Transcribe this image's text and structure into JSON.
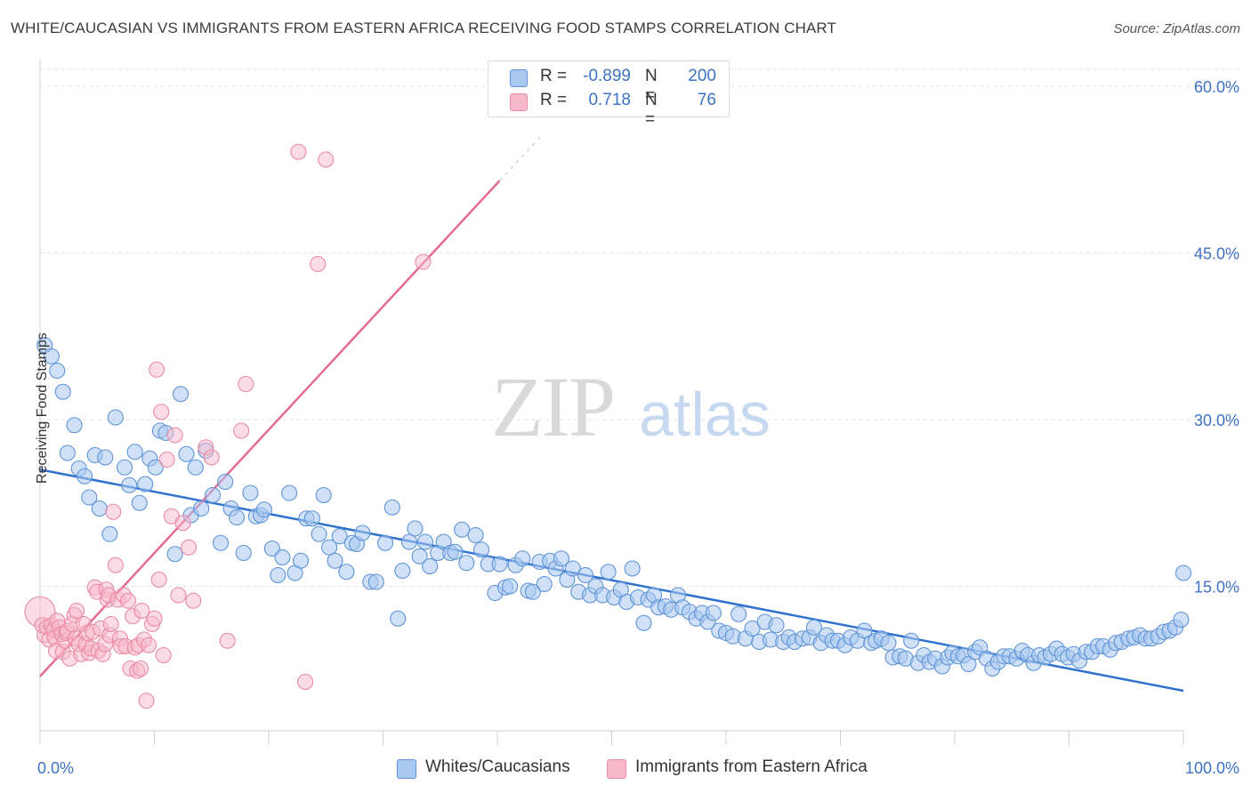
{
  "header": {
    "title": "WHITE/CAUCASIAN VS IMMIGRANTS FROM EASTERN AFRICA RECEIVING FOOD STAMPS CORRELATION CHART",
    "source": "Source: ZipAtlas.com"
  },
  "watermark": {
    "zip": "ZIP",
    "atlas": "atlas"
  },
  "legend_top": {
    "rows": [
      {
        "r_label": "R =",
        "r_value": "-0.899",
        "n_label": "N =",
        "n_value": "200"
      },
      {
        "r_label": "R =",
        "r_value": "0.718",
        "n_label": "N =",
        "n_value": "76"
      }
    ]
  },
  "colors": {
    "blue_fill": "#a9c8f0",
    "blue_stroke": "#5d93d6",
    "blue_line": "#2f73cf",
    "pink_fill": "#f7b8cb",
    "pink_stroke": "#e98aa6",
    "pink_line": "#e46c93",
    "axis_text": "#3d72c4"
  },
  "chart_data": {
    "type": "scatter",
    "ylabel": "Receiving Food Stamps",
    "xlim": [
      0,
      100
    ],
    "ylim": [
      0,
      63
    ],
    "x_tick_labels": [
      "0.0%",
      "100.0%"
    ],
    "y_ticks": [
      15,
      30,
      45,
      60
    ],
    "y_tick_labels": [
      "15.0%",
      "30.0%",
      "45.0%",
      "60.0%"
    ],
    "grid": true,
    "legend_placement": "top-center",
    "series": [
      {
        "name": "Whites/Caucasians",
        "color": "#a9c8f0",
        "trend": {
          "x": [
            0,
            100
          ],
          "y": [
            25.5,
            5.6
          ],
          "style": "solid"
        },
        "points": [
          [
            0.4,
            36.7
          ],
          [
            1,
            35.7
          ],
          [
            1.5,
            34.4
          ],
          [
            2,
            32.5
          ],
          [
            2.4,
            27
          ],
          [
            3,
            29.5
          ],
          [
            3.4,
            25.6
          ],
          [
            3.9,
            24.9
          ],
          [
            4.3,
            23
          ],
          [
            4.8,
            26.8
          ],
          [
            5.2,
            22
          ],
          [
            5.7,
            26.6
          ],
          [
            6.1,
            19.7
          ],
          [
            6.6,
            30.2
          ],
          [
            7.4,
            25.7
          ],
          [
            7.8,
            24.1
          ],
          [
            8.3,
            27.1
          ],
          [
            8.7,
            22.5
          ],
          [
            9.2,
            24.2
          ],
          [
            9.6,
            26.5
          ],
          [
            10.1,
            25.7
          ],
          [
            10.5,
            29
          ],
          [
            11,
            28.8
          ],
          [
            11.8,
            17.9
          ],
          [
            12.3,
            32.3
          ],
          [
            12.8,
            26.9
          ],
          [
            13.2,
            21.4
          ],
          [
            13.6,
            25.7
          ],
          [
            14.1,
            22
          ],
          [
            14.5,
            27.2
          ],
          [
            15.1,
            23.2
          ],
          [
            15.8,
            18.9
          ],
          [
            16.2,
            24.4
          ],
          [
            16.7,
            22
          ],
          [
            17.2,
            21.2
          ],
          [
            17.8,
            18
          ],
          [
            18.4,
            23.4
          ],
          [
            18.9,
            21.3
          ],
          [
            19.3,
            21.4
          ],
          [
            19.6,
            21.9
          ],
          [
            20.3,
            18.4
          ],
          [
            20.8,
            16
          ],
          [
            21.2,
            17.6
          ],
          [
            21.8,
            23.4
          ],
          [
            22.3,
            16.2
          ],
          [
            22.8,
            17.3
          ],
          [
            23.3,
            21.1
          ],
          [
            23.8,
            21.1
          ],
          [
            24.4,
            19.7
          ],
          [
            24.8,
            23.2
          ],
          [
            25.3,
            18.5
          ],
          [
            25.8,
            17.3
          ],
          [
            26.2,
            19.5
          ],
          [
            26.8,
            16.3
          ],
          [
            27.3,
            18.9
          ],
          [
            27.7,
            18.8
          ],
          [
            28.2,
            19.8
          ],
          [
            28.9,
            15.4
          ],
          [
            29.4,
            15.4
          ],
          [
            30.2,
            18.9
          ],
          [
            30.8,
            22.1
          ],
          [
            31.3,
            12.1
          ],
          [
            31.7,
            16.4
          ],
          [
            32.3,
            19
          ],
          [
            32.8,
            20.2
          ],
          [
            33.2,
            17.7
          ],
          [
            33.7,
            19
          ],
          [
            34.1,
            16.8
          ],
          [
            34.8,
            18
          ],
          [
            35.3,
            19
          ],
          [
            35.9,
            18
          ],
          [
            36.3,
            18.1
          ],
          [
            36.9,
            20.1
          ],
          [
            37.3,
            17.1
          ],
          [
            38.1,
            19.6
          ],
          [
            38.6,
            18.3
          ],
          [
            39.2,
            17
          ],
          [
            39.8,
            14.4
          ],
          [
            40.2,
            17
          ],
          [
            40.7,
            14.9
          ],
          [
            41.1,
            15
          ],
          [
            41.6,
            16.9
          ],
          [
            42.2,
            17.5
          ],
          [
            42.7,
            14.6
          ],
          [
            43.1,
            14.5
          ],
          [
            43.7,
            17.2
          ],
          [
            44.1,
            15.2
          ],
          [
            44.6,
            17.3
          ],
          [
            45.1,
            16.6
          ],
          [
            45.6,
            17.5
          ],
          [
            46.1,
            15.6
          ],
          [
            46.6,
            16.6
          ],
          [
            47.1,
            14.5
          ],
          [
            47.7,
            16
          ],
          [
            48.1,
            14.2
          ],
          [
            48.6,
            15
          ],
          [
            49.2,
            14.2
          ],
          [
            49.7,
            16.3
          ],
          [
            50.2,
            14
          ],
          [
            50.8,
            14.7
          ],
          [
            51.3,
            13.6
          ],
          [
            51.8,
            16.6
          ],
          [
            52.3,
            14
          ],
          [
            52.8,
            11.7
          ],
          [
            53.2,
            13.8
          ],
          [
            53.7,
            14.2
          ],
          [
            54.1,
            13.1
          ],
          [
            54.7,
            13.2
          ],
          [
            55.2,
            12.9
          ],
          [
            55.8,
            14.2
          ],
          [
            56.2,
            13.1
          ],
          [
            56.8,
            12.7
          ],
          [
            57.4,
            12.1
          ],
          [
            57.9,
            12.6
          ],
          [
            58.4,
            11.8
          ],
          [
            58.9,
            12.6
          ],
          [
            59.4,
            11
          ],
          [
            60,
            10.8
          ],
          [
            60.6,
            10.5
          ],
          [
            61.1,
            12.5
          ],
          [
            61.7,
            10.3
          ],
          [
            62.3,
            11.2
          ],
          [
            62.9,
            10
          ],
          [
            63.4,
            11.8
          ],
          [
            63.9,
            10.2
          ],
          [
            64.4,
            11.5
          ],
          [
            65,
            10
          ],
          [
            65.5,
            10.4
          ],
          [
            66,
            10
          ],
          [
            66.7,
            10.3
          ],
          [
            67.3,
            10.4
          ],
          [
            67.7,
            11.3
          ],
          [
            68.3,
            9.9
          ],
          [
            68.8,
            10.6
          ],
          [
            69.3,
            10.1
          ],
          [
            69.8,
            10.1
          ],
          [
            70.4,
            9.7
          ],
          [
            70.9,
            10.4
          ],
          [
            71.5,
            10.1
          ],
          [
            72.1,
            11
          ],
          [
            72.7,
            9.9
          ],
          [
            73.1,
            10.1
          ],
          [
            73.6,
            10.3
          ],
          [
            74.2,
            9.9
          ],
          [
            74.6,
            8.6
          ],
          [
            75.2,
            8.7
          ],
          [
            75.7,
            8.5
          ],
          [
            76.2,
            10.1
          ],
          [
            76.8,
            8.1
          ],
          [
            77.3,
            8.8
          ],
          [
            77.8,
            8.2
          ],
          [
            78.3,
            8.5
          ],
          [
            78.9,
            7.8
          ],
          [
            79.4,
            8.6
          ],
          [
            79.8,
            9
          ],
          [
            80.3,
            8.7
          ],
          [
            80.8,
            8.8
          ],
          [
            81.2,
            8
          ],
          [
            81.8,
            9.1
          ],
          [
            82.2,
            9.5
          ],
          [
            82.8,
            8.5
          ],
          [
            83.3,
            7.6
          ],
          [
            83.8,
            8.2
          ],
          [
            84.3,
            8.7
          ],
          [
            84.8,
            8.7
          ],
          [
            85.4,
            8.5
          ],
          [
            85.9,
            9.2
          ],
          [
            86.4,
            8.8
          ],
          [
            86.9,
            8.1
          ],
          [
            87.4,
            8.8
          ],
          [
            87.9,
            8.6
          ],
          [
            88.4,
            8.9
          ],
          [
            88.9,
            9.4
          ],
          [
            89.4,
            8.9
          ],
          [
            89.9,
            8.6
          ],
          [
            90.4,
            8.9
          ],
          [
            90.9,
            8.3
          ],
          [
            91.5,
            9.1
          ],
          [
            92,
            9.1
          ],
          [
            92.5,
            9.6
          ],
          [
            93,
            9.6
          ],
          [
            93.6,
            9.3
          ],
          [
            94.1,
            9.9
          ],
          [
            94.6,
            10
          ],
          [
            95.2,
            10.3
          ],
          [
            95.7,
            10.4
          ],
          [
            96.2,
            10.6
          ],
          [
            96.7,
            10.3
          ],
          [
            97.2,
            10.3
          ],
          [
            97.8,
            10.5
          ],
          [
            98.3,
            10.9
          ],
          [
            98.8,
            11
          ],
          [
            99.3,
            11.3
          ],
          [
            99.8,
            12
          ],
          [
            100,
            16.2
          ]
        ]
      },
      {
        "name": "Immigrants from Eastern Africa",
        "color": "#f7b8cb",
        "trend": {
          "x": [
            0,
            40.2,
            44
          ],
          "y": [
            6.9,
            51.5,
            55.7
          ],
          "style": "solid-then-dashed"
        },
        "points": [
          [
            0,
            12.7
          ],
          [
            0.2,
            11.5
          ],
          [
            0.4,
            10.6
          ],
          [
            0.6,
            11.3
          ],
          [
            0.8,
            10.2
          ],
          [
            1,
            11.5
          ],
          [
            1.2,
            11.1
          ],
          [
            1.3,
            10.4
          ],
          [
            1.4,
            9.2
          ],
          [
            1.5,
            11.9
          ],
          [
            1.7,
            11.3
          ],
          [
            1.9,
            10.7
          ],
          [
            2,
            9.1
          ],
          [
            2.2,
            10.1
          ],
          [
            2.3,
            10.8
          ],
          [
            2.4,
            11
          ],
          [
            2.6,
            8.5
          ],
          [
            2.8,
            11.6
          ],
          [
            3,
            12.4
          ],
          [
            3.1,
            10.3
          ],
          [
            3.2,
            12.8
          ],
          [
            3.4,
            9.8
          ],
          [
            3.6,
            8.9
          ],
          [
            3.8,
            11.6
          ],
          [
            4,
            9.8
          ],
          [
            4.1,
            10.8
          ],
          [
            4.3,
            9
          ],
          [
            4.5,
            9.4
          ],
          [
            4.6,
            10.9
          ],
          [
            4.8,
            14.9
          ],
          [
            5,
            14.5
          ],
          [
            5.1,
            9.2
          ],
          [
            5.3,
            11.2
          ],
          [
            5.5,
            8.9
          ],
          [
            5.7,
            9.8
          ],
          [
            5.8,
            14.7
          ],
          [
            5.9,
            13.8
          ],
          [
            6,
            14.2
          ],
          [
            6.1,
            10.6
          ],
          [
            6.2,
            11.6
          ],
          [
            6.4,
            21.7
          ],
          [
            6.6,
            16.9
          ],
          [
            6.8,
            13.8
          ],
          [
            7,
            10.3
          ],
          [
            7.1,
            9.6
          ],
          [
            7.3,
            14.2
          ],
          [
            7.5,
            9.6
          ],
          [
            7.7,
            13.7
          ],
          [
            7.9,
            7.6
          ],
          [
            8.1,
            12.3
          ],
          [
            8.3,
            9.5
          ],
          [
            8.5,
            7.4
          ],
          [
            8.6,
            9.7
          ],
          [
            8.8,
            7.6
          ],
          [
            8.9,
            12.8
          ],
          [
            9.1,
            10.2
          ],
          [
            9.3,
            4.7
          ],
          [
            9.5,
            9.7
          ],
          [
            9.8,
            11.6
          ],
          [
            10,
            12.1
          ],
          [
            10.2,
            34.5
          ],
          [
            10.4,
            15.6
          ],
          [
            10.6,
            30.7
          ],
          [
            10.8,
            8.8
          ],
          [
            11.1,
            26.4
          ],
          [
            11.5,
            21.3
          ],
          [
            11.8,
            28.6
          ],
          [
            12.1,
            14.2
          ],
          [
            12.5,
            20.7
          ],
          [
            13,
            18.5
          ],
          [
            13.4,
            13.7
          ],
          [
            14.5,
            27.5
          ],
          [
            15,
            26.6
          ],
          [
            16.4,
            10.1
          ],
          [
            17.6,
            29
          ],
          [
            18,
            33.2
          ],
          [
            22.6,
            54.1
          ],
          [
            23.2,
            6.4
          ],
          [
            24.3,
            44
          ],
          [
            25,
            53.4
          ],
          [
            33.5,
            44.2
          ]
        ]
      }
    ]
  },
  "legend_bottom": [
    {
      "label": "Whites/Caucasians"
    },
    {
      "label": "Immigrants from Eastern Africa"
    }
  ]
}
